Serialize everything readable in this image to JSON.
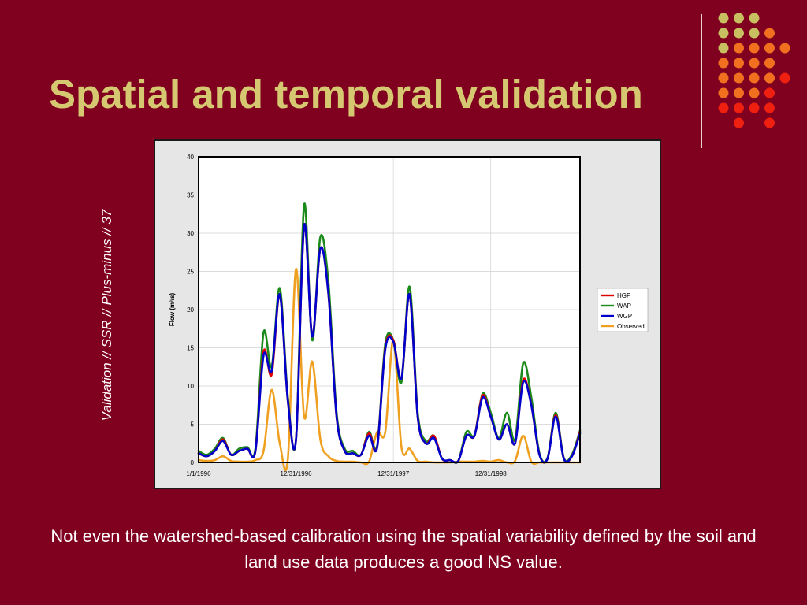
{
  "slide": {
    "title": "Spatial and temporal validation",
    "side_text": "Validation // SSR // Plus-minus // 37",
    "caption": "Not even the watershed-based calibration using the spatial variability defined by the soil and land use data produces a good NS value."
  },
  "colors": {
    "background": "#800020",
    "title": "#d6c870",
    "dot_yellow": "#c8c060",
    "dot_orange": "#f07020",
    "dot_red": "#f02010"
  },
  "decoration": {
    "dot_rows": [
      [
        "y",
        "y",
        "y",
        "",
        "",
        ""
      ],
      [
        "y",
        "y",
        "y",
        "o",
        "",
        ""
      ],
      [
        "y",
        "o",
        "o",
        "o",
        "o",
        ""
      ],
      [
        "o",
        "o",
        "o",
        "o",
        "",
        ""
      ],
      [
        "o",
        "o",
        "o",
        "o",
        "r",
        ""
      ],
      [
        "o",
        "o",
        "o",
        "r",
        "",
        ""
      ],
      [
        "r",
        "r",
        "r",
        "r",
        "",
        ""
      ],
      [
        "",
        "r",
        "",
        "r",
        "",
        ""
      ]
    ]
  },
  "chart_data": {
    "type": "line",
    "title": "",
    "xlabel": "",
    "ylabel": "Flow (m³/s)",
    "ylim": [
      0,
      40
    ],
    "yticks": [
      0,
      5,
      10,
      15,
      20,
      25,
      30,
      35,
      40
    ],
    "xticks": [
      "1/1/1996",
      "12/31/1996",
      "12/31/1997",
      "12/31/1998"
    ],
    "xtick_months": [
      0,
      12,
      24,
      36
    ],
    "x_start_label": "1/1/1996",
    "x_months": 47,
    "grid": true,
    "legend_position": "right",
    "series": [
      {
        "name": "HGP",
        "color": "#e00000",
        "values": [
          1.2,
          0.8,
          1.5,
          3.0,
          1.0,
          1.5,
          1.8,
          1.5,
          14.5,
          11.5,
          22.0,
          8.0,
          3.0,
          31.0,
          16.5,
          28.0,
          22.0,
          6.0,
          1.5,
          1.2,
          1.0,
          3.8,
          2.0,
          15.0,
          16.0,
          11.0,
          22.0,
          6.0,
          2.5,
          3.5,
          0.5,
          0.3,
          0.2,
          3.5,
          3.5,
          8.8,
          6.0,
          3.0,
          5.0,
          2.5,
          10.8,
          7.5,
          1.0,
          0.5,
          6.2,
          0.5,
          0.8,
          4.0
        ]
      },
      {
        "name": "WAP",
        "color": "#1a8a1a",
        "values": [
          1.5,
          1.0,
          1.8,
          3.2,
          1.0,
          1.8,
          2.0,
          1.8,
          17.0,
          12.5,
          22.8,
          8.5,
          3.0,
          33.7,
          16.0,
          29.5,
          23.5,
          6.5,
          1.8,
          1.5,
          1.0,
          4.0,
          2.2,
          15.5,
          16.0,
          10.5,
          23.0,
          6.5,
          2.8,
          3.5,
          0.5,
          0.3,
          0.2,
          4.0,
          3.6,
          9.0,
          6.5,
          3.2,
          6.5,
          3.0,
          13.0,
          8.5,
          1.2,
          0.6,
          6.5,
          0.6,
          1.0,
          4.2
        ]
      },
      {
        "name": "WGP",
        "color": "#0000cc",
        "values": [
          1.2,
          0.8,
          1.5,
          2.8,
          1.0,
          1.5,
          1.8,
          1.5,
          14.0,
          12.0,
          22.0,
          8.0,
          3.0,
          31.0,
          16.5,
          28.0,
          22.0,
          6.0,
          1.5,
          1.2,
          1.0,
          3.5,
          2.0,
          14.8,
          15.8,
          11.0,
          22.0,
          6.0,
          2.5,
          3.2,
          0.5,
          0.3,
          0.2,
          3.5,
          3.5,
          8.5,
          6.0,
          3.0,
          5.0,
          2.5,
          10.5,
          7.5,
          1.0,
          0.5,
          6.0,
          0.5,
          0.8,
          3.8
        ]
      },
      {
        "name": "Observed",
        "color": "#f0a020",
        "values": [
          0.3,
          0.2,
          0.3,
          0.8,
          0.2,
          0.1,
          0.1,
          0.3,
          1.5,
          9.5,
          2.5,
          0.5,
          25.3,
          6.0,
          13.2,
          3.0,
          0.8,
          0.2,
          0.1,
          0.1,
          0.0,
          0.1,
          4.0,
          4.0,
          16.0,
          2.0,
          1.8,
          0.2,
          0.1,
          0.0,
          0.0,
          0.0,
          0.1,
          0.1,
          0.1,
          0.2,
          0.1,
          0.3,
          0.0,
          0.2,
          3.5,
          0.1,
          0.0,
          0.0,
          0.0,
          0.0,
          0.0,
          0.0
        ]
      }
    ]
  }
}
